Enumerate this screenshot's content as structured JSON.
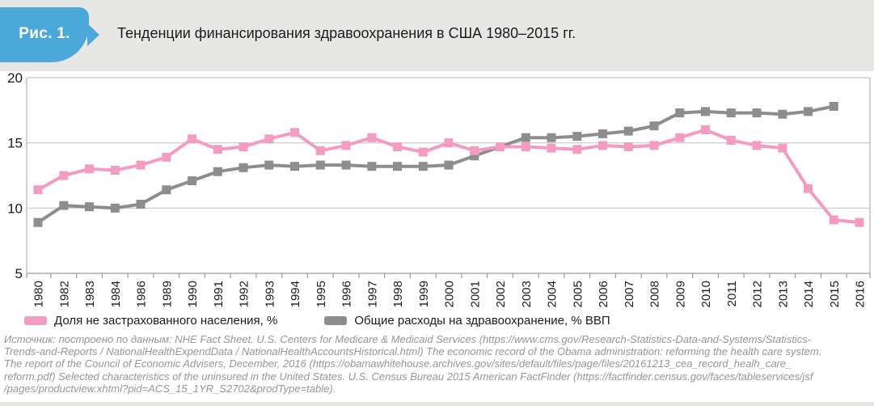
{
  "figure": {
    "badge": "Рис. 1.",
    "title": "Тенденции финансирования здравоохранения в США 1980–2015 гг."
  },
  "colors": {
    "badge_blue": "#4CA7DB",
    "header_bg": "#E7E7E5",
    "panel_bg": "#FFFFFF",
    "gridline": "#C8C8C8",
    "axis": "#9C9C9C",
    "plot_border": "#B4B4B4",
    "text": "#1b1b1b"
  },
  "chart_data": {
    "type": "line",
    "title": "Тенденции финансирования здравоохранения в США 1980–2015 гг.",
    "categories": [
      "1980",
      "1982",
      "1983",
      "1984",
      "1986",
      "1989",
      "1990",
      "1991",
      "1992",
      "1993",
      "1994",
      "1995",
      "1996",
      "1997",
      "1998",
      "1999",
      "2000",
      "2001",
      "2002",
      "2003",
      "2004",
      "2005",
      "2006",
      "2007",
      "2008",
      "2009",
      "2010",
      "2011",
      "2012",
      "2013",
      "2014",
      "2015",
      "2016"
    ],
    "series": [
      {
        "name": "Доля не застрахованного населения, %",
        "color": "#F49BC1",
        "values": [
          11.4,
          12.5,
          13.0,
          12.9,
          13.3,
          13.9,
          15.3,
          14.5,
          14.7,
          15.3,
          15.8,
          14.4,
          14.8,
          15.4,
          14.7,
          14.3,
          15.0,
          14.4,
          14.7,
          14.7,
          14.6,
          14.5,
          14.8,
          14.7,
          14.8,
          15.4,
          16.0,
          15.2,
          14.8,
          14.6,
          11.5,
          9.1,
          8.9
        ]
      },
      {
        "name": "Общие расходы на здравоохранение, % ВВП",
        "color": "#8D8D8D",
        "values": [
          8.9,
          10.2,
          10.1,
          10.0,
          10.3,
          11.4,
          12.1,
          12.8,
          13.1,
          13.3,
          13.2,
          13.3,
          13.3,
          13.2,
          13.2,
          13.2,
          13.3,
          14.0,
          14.7,
          15.4,
          15.4,
          15.5,
          15.7,
          15.9,
          16.3,
          17.3,
          17.4,
          17.3,
          17.3,
          17.2,
          17.4,
          17.8,
          null
        ]
      }
    ],
    "ylim": [
      5,
      20
    ],
    "y_ticks": [
      5,
      10,
      15,
      20
    ],
    "xlabel": "",
    "ylabel": "",
    "grid": "horizontal",
    "legend_position": "bottom",
    "marker": "square",
    "x_labels_rotated": true
  },
  "source": {
    "lines": [
      "Источник: построено по данным: NHE Fact Sheet. U.S. Centers for Medicare & Medicaid Services (https://www.cms.gov/Research-Statistics-Data-and-Systems/Statistics-",
      "Trends-and-Reports / NationalHealthExpendData / NationalHealthAccountsHistorical.html) The economic record of the Obama administration: reforming the health care system.",
      "The report of the Council of Economic Advisers, December, 2016 (https://obamawhitehouse.archives.gov/sites/default/files/page/files/20161213_cea_record_healh_care_",
      "reform.pdf) Selected characteristics of the uninsured in the United States. U.S. Census Bureau 2015 American FactFinder (https://factfinder.census.gov/faces/tableservices/jsf",
      "/pages/productview.xhtml?pid=ACS_15_1YR_S2702&prodType=table)."
    ]
  }
}
